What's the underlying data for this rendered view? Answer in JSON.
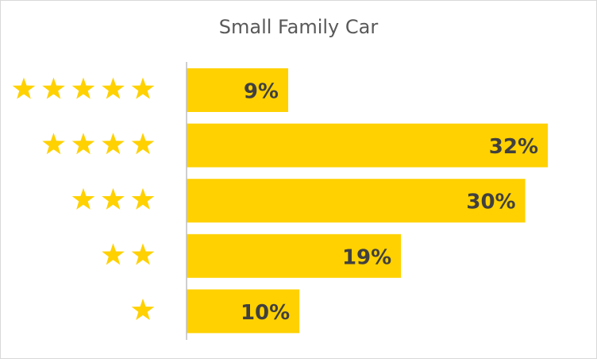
{
  "chart_data": {
    "type": "bar",
    "orientation": "horizontal",
    "title": "Small Family Car",
    "xlabel": "",
    "ylabel": "",
    "categories": [
      "★★★★★",
      "★★★★",
      "★★★",
      "★★",
      "★"
    ],
    "star_counts": [
      5,
      4,
      3,
      2,
      1
    ],
    "values": [
      9,
      32,
      30,
      19,
      10
    ],
    "value_labels": [
      "9%",
      "32%",
      "30%",
      "19%",
      "10%"
    ],
    "xlim": [
      0,
      35
    ],
    "grid": false,
    "legend": "none",
    "colors": {
      "bar": "#FFD100",
      "star": "#FFD100",
      "label": "#404040",
      "axis": "#bfbfbf",
      "title": "#595959"
    }
  }
}
